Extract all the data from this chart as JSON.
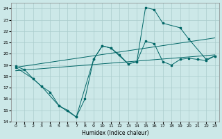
{
  "xlabel": "Humidex (Indice chaleur)",
  "bg_color": "#cce8e8",
  "grid_color": "#aacccc",
  "line_color": "#006666",
  "xlim": [
    -0.5,
    23.5
  ],
  "ylim": [
    14,
    24.5
  ],
  "xticks": [
    0,
    1,
    2,
    3,
    4,
    5,
    6,
    7,
    8,
    9,
    10,
    11,
    12,
    13,
    14,
    15,
    16,
    17,
    18,
    19,
    20,
    21,
    22,
    23
  ],
  "yticks": [
    14,
    15,
    16,
    17,
    18,
    19,
    20,
    21,
    22,
    23,
    24
  ],
  "line1_x": [
    0,
    1,
    2,
    3,
    4,
    5,
    6,
    7,
    8,
    9,
    10,
    11,
    12,
    13,
    14,
    15,
    16,
    17,
    18,
    19,
    20,
    21,
    22,
    23
  ],
  "line1_y": [
    18.9,
    18.6,
    17.8,
    17.1,
    16.6,
    15.4,
    15.0,
    14.4,
    16.0,
    19.5,
    20.7,
    20.5,
    19.9,
    19.1,
    19.3,
    21.1,
    20.9,
    19.3,
    19.0,
    19.5,
    19.6,
    19.5,
    19.4,
    19.8
  ],
  "line2_x": [
    0,
    2,
    3,
    5,
    7,
    9,
    10,
    11,
    13,
    14,
    15,
    16,
    17,
    19,
    20,
    22,
    23
  ],
  "line2_y": [
    18.8,
    17.8,
    17.1,
    15.4,
    14.4,
    19.5,
    20.7,
    20.5,
    19.1,
    19.3,
    24.1,
    23.9,
    22.7,
    22.3,
    21.3,
    19.5,
    19.8
  ],
  "line3_x": [
    0,
    23
  ],
  "line3_y": [
    18.5,
    19.9
  ],
  "line4_x": [
    0,
    23
  ],
  "line4_y": [
    18.8,
    21.4
  ]
}
